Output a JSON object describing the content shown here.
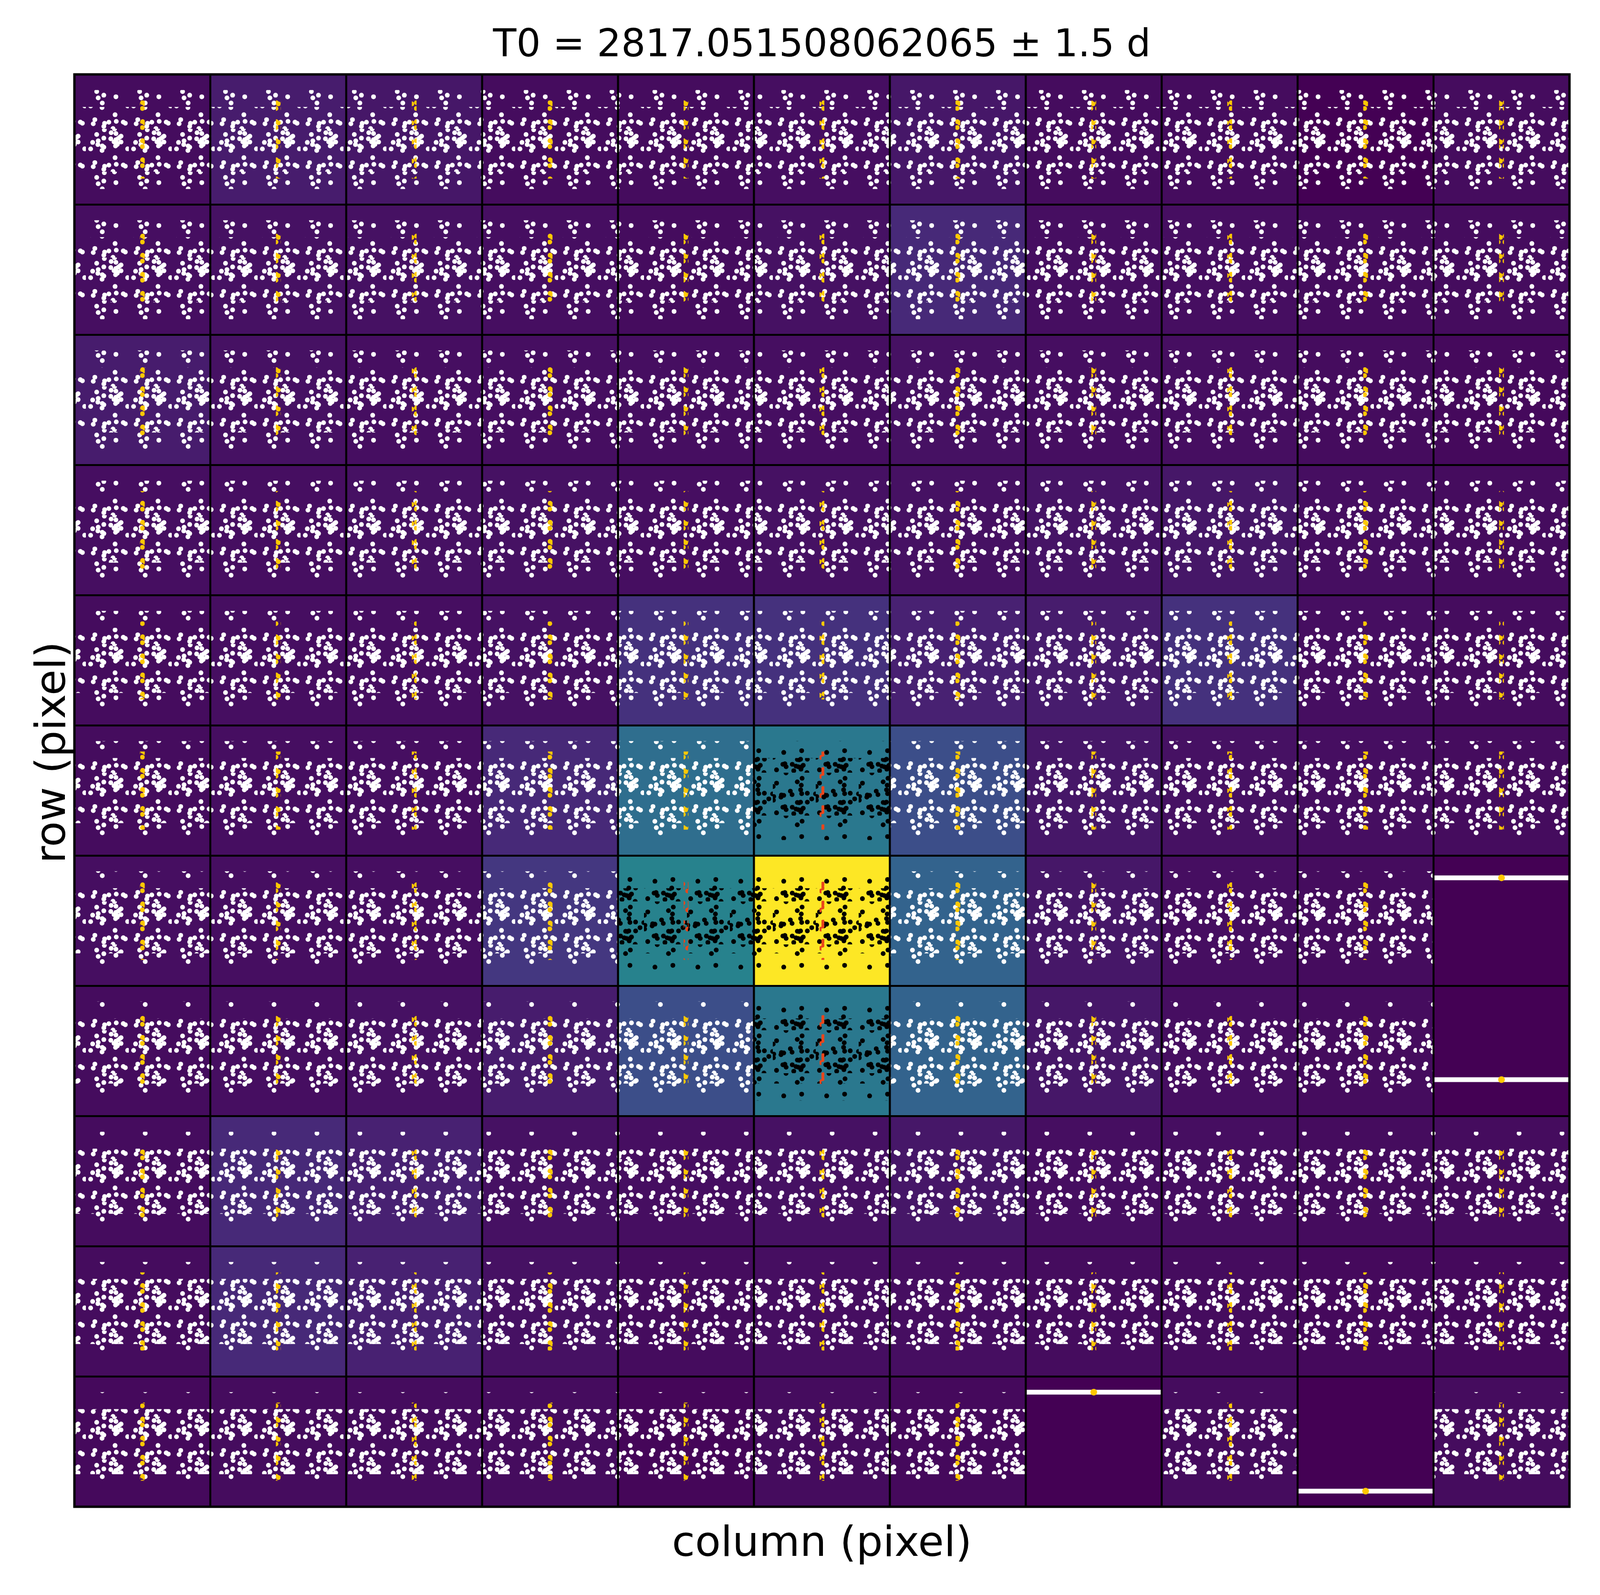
{
  "chart_data": {
    "type": "pixel_grid",
    "title": "T0 = 2817.051508062065 ± 1.5 d",
    "x_label": "column (pixel)",
    "y_label": "row (pixel)",
    "tick_labels": false,
    "xlim": [
      -1.5,
      1.5
    ],
    "transit_time": 0,
    "transit_duration": 0.1,
    "cells": [
      [
        0.04,
        0.1,
        0.08,
        0.04,
        0.04,
        0.05,
        0.08,
        0.04,
        0.04,
        0.0,
        0.04
      ],
      [
        0.05,
        0.06,
        0.06,
        0.05,
        0.04,
        0.06,
        0.15,
        0.05,
        0.05,
        0.04,
        0.04
      ],
      [
        0.1,
        0.06,
        0.05,
        0.05,
        0.05,
        0.05,
        0.06,
        0.05,
        0.05,
        0.04,
        0.03
      ],
      [
        0.05,
        0.05,
        0.06,
        0.06,
        0.05,
        0.06,
        0.06,
        0.07,
        0.08,
        0.05,
        0.04
      ],
      [
        0.04,
        0.05,
        0.05,
        0.06,
        0.18,
        0.18,
        0.12,
        0.1,
        0.18,
        0.05,
        0.04
      ],
      [
        0.04,
        0.05,
        0.05,
        0.15,
        0.45,
        0.5,
        0.3,
        0.08,
        0.06,
        0.05,
        0.04
      ],
      [
        0.05,
        0.05,
        0.05,
        0.2,
        0.55,
        1.0,
        0.4,
        0.08,
        0.05,
        0.04,
        0.0
      ],
      [
        0.04,
        0.05,
        0.06,
        0.1,
        0.3,
        0.5,
        0.4,
        0.08,
        0.05,
        0.04,
        0.0
      ],
      [
        0.04,
        0.15,
        0.12,
        0.06,
        0.05,
        0.06,
        0.08,
        0.05,
        0.05,
        0.04,
        0.04
      ],
      [
        0.04,
        0.15,
        0.12,
        0.06,
        0.04,
        0.05,
        0.05,
        0.04,
        0.04,
        0.03,
        0.03
      ],
      [
        0.03,
        0.04,
        0.04,
        0.04,
        0.02,
        0.04,
        0.03,
        0.0,
        0.04,
        0.0,
        0.04
      ]
    ],
    "aperture": [
      [
        5,
        5
      ],
      [
        6,
        4
      ],
      [
        6,
        5
      ],
      [
        7,
        5
      ]
    ],
    "flat_cells": [
      {
        "row": 6,
        "col": 10,
        "level": 0.17
      },
      {
        "row": 7,
        "col": 10,
        "level": 0.72
      },
      {
        "row": 10,
        "col": 7,
        "level": 0.12
      },
      {
        "row": 10,
        "col": 9,
        "level": 0.88
      }
    ]
  }
}
